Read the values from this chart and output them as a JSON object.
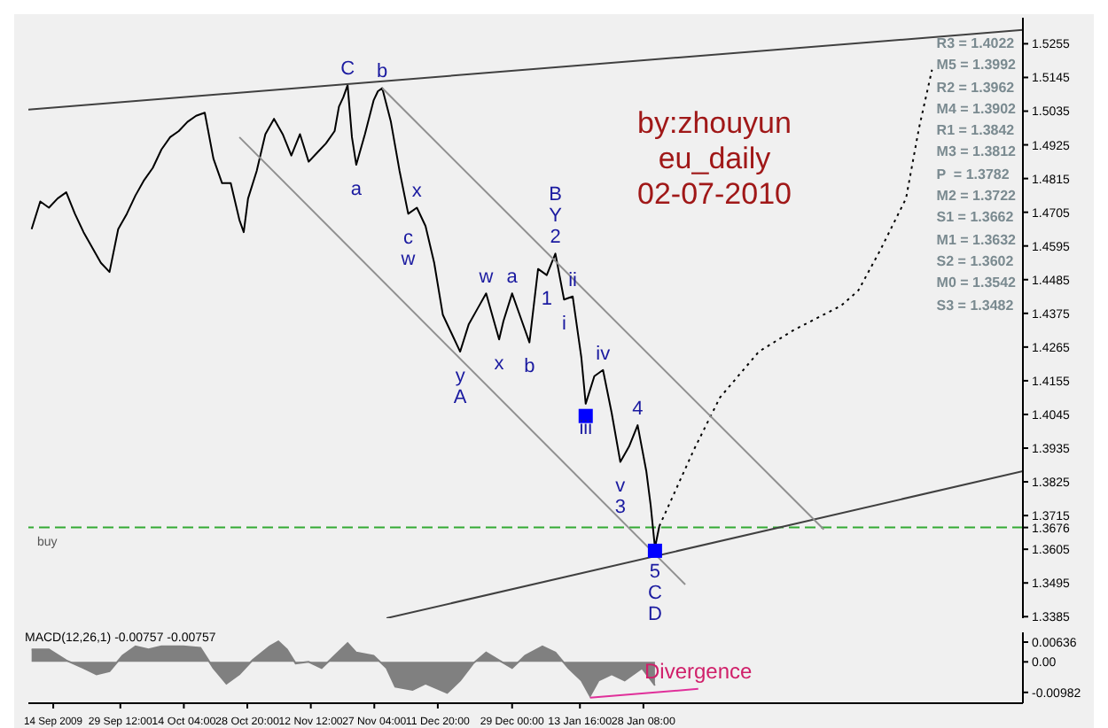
{
  "chart_data": [
    {
      "type": "line",
      "title": "by:zhouyun\neu_daily\n02-07-2010",
      "xlim": [
        "2009-09-08T06:00",
        "2010-04-26"
      ],
      "ylim": [
        1.338,
        1.534
      ],
      "yticks": [
        1.5255,
        1.5145,
        1.5035,
        1.4925,
        1.4815,
        1.4705,
        1.4595,
        1.4485,
        1.4375,
        1.4265,
        1.4155,
        1.4045,
        1.3935,
        1.3825,
        1.3715,
        {
          "value": 1.3676,
          "label": "1.3676"
        },
        1.3605,
        1.3495,
        1.3385
      ],
      "tick_labels": "y",
      "series": [
        {
          "color": "#000000",
          "x": [
            "2009-09-09",
            "2009-09-11",
            "2009-09-13",
            "2009-09-15",
            "2009-09-17",
            "2009-09-19",
            "2009-09-21",
            "2009-09-23",
            "2009-09-25",
            "2009-09-27",
            "2009-09-29",
            "2009-10-01",
            "2009-10-03",
            "2009-10-05",
            "2009-10-07",
            "2009-10-09",
            "2009-10-11",
            "2009-10-13",
            "2009-10-15",
            "2009-10-17",
            "2009-10-19",
            "2009-10-21",
            "2009-10-23",
            "2009-10-25",
            "2009-10-27",
            "2009-10-28",
            "2009-10-29",
            "2009-10-31",
            "2009-11-02",
            "2009-11-04",
            "2009-11-06",
            "2009-11-08",
            "2009-11-10",
            "2009-11-12",
            "2009-11-14",
            "2009-11-16",
            "2009-11-18",
            "2009-11-19",
            "2009-11-20",
            "2009-11-21",
            "2009-11-22",
            "2009-11-23",
            "2009-11-25",
            "2009-11-27",
            "2009-11-28",
            "2009-11-29",
            "2009-12-01",
            "2009-12-03",
            "2009-12-05",
            "2009-12-07",
            "2009-12-09",
            "2009-12-11",
            "2009-12-13",
            "2009-12-15",
            "2009-12-17",
            "2009-12-19",
            "2009-12-21",
            "2009-12-23",
            "2009-12-25",
            "2009-12-26",
            "2009-12-27",
            "2009-12-29",
            "2009-12-31",
            "2010-01-02",
            "2010-01-04",
            "2010-01-06",
            "2010-01-08",
            "2010-01-10",
            "2010-01-12",
            "2010-01-14",
            "2010-01-15",
            "2010-01-17",
            "2010-01-19",
            "2010-01-21",
            "2010-01-23",
            "2010-01-25",
            "2010-01-27",
            "2010-01-29",
            "2010-01-30",
            "2010-01-31",
            "2010-02-01"
          ],
          "values": [
            1.465,
            1.474,
            1.472,
            1.475,
            1.477,
            1.47,
            1.464,
            1.459,
            1.454,
            1.451,
            1.465,
            1.47,
            1.476,
            1.481,
            1.485,
            1.491,
            1.495,
            1.497,
            1.5,
            1.502,
            1.503,
            1.488,
            1.48,
            1.48,
            1.468,
            1.464,
            1.475,
            1.484,
            1.496,
            1.501,
            1.496,
            1.489,
            1.496,
            1.487,
            1.49,
            1.493,
            1.497,
            1.505,
            1.508,
            1.512,
            1.495,
            1.486,
            1.496,
            1.507,
            1.51,
            1.511,
            1.5,
            1.484,
            1.47,
            1.472,
            1.466,
            1.454,
            1.437,
            1.431,
            1.425,
            1.434,
            1.439,
            1.444,
            1.434,
            1.429,
            1.435,
            1.444,
            1.436,
            1.428,
            1.452,
            1.45,
            1.457,
            1.442,
            1.443,
            1.423,
            1.408,
            1.417,
            1.419,
            1.405,
            1.389,
            1.394,
            1.401,
            1.386,
            1.375,
            1.361,
            1.368
          ]
        },
        {
          "color": "#000000",
          "line_style": "dotted",
          "x": [
            "2010-02-01",
            "2010-02-09",
            "2010-02-15",
            "2010-02-24",
            "2010-03-04",
            "2010-03-15",
            "2010-03-19",
            "2010-03-24",
            "2010-03-30",
            "2010-04-02",
            "2010-04-05"
          ],
          "values": [
            1.368,
            1.393,
            1.41,
            1.425,
            1.432,
            1.44,
            1.445,
            1.458,
            1.475,
            1.498,
            1.517
          ]
        },
        {
          "color": "#404040",
          "x": [
            "2009-09-08T06:00",
            "2010-04-26"
          ],
          "values": [
            1.504,
            1.53
          ]
        },
        {
          "color": "#404040",
          "x": [
            "2009-11-30",
            "2010-04-26"
          ],
          "values": [
            1.338,
            1.386
          ]
        },
        {
          "color": "#909090",
          "x": [
            "2009-11-29",
            "2010-03-11"
          ],
          "values": [
            1.511,
            1.367
          ]
        },
        {
          "color": "#909090",
          "x": [
            "2009-10-27",
            "2010-02-07"
          ],
          "values": [
            1.495,
            1.349
          ]
        },
        {
          "type": "scatter",
          "marker": "square",
          "color": "#0000ff",
          "x": [
            "2010-01-15",
            "2010-01-31"
          ],
          "values": [
            1.404,
            1.36
          ]
        }
      ],
      "ref_lines": [
        {
          "axis": "y",
          "value": 1.3676,
          "label": "buy",
          "color": "#33aa33",
          "line_style": "dashed"
        }
      ],
      "annotations": [
        "R3 = 1.4022",
        "M5 = 1.3992",
        "R2 = 1.3962",
        "M4 = 1.3902",
        "R1 = 1.3842",
        "M3 = 1.3812",
        "P  = 1.3782",
        "M2 = 1.3722",
        "S1 = 1.3662",
        "M1 = 1.3632",
        "S2 = 1.3602",
        "M0 = 1.3542",
        "S3 = 1.3482",
        {
          "text": "C",
          "x": "2009-11-21",
          "y": 1.512
        },
        {
          "text": "b",
          "x": "2009-11-29",
          "y": 1.511
        },
        {
          "text": "a",
          "x": "2009-11-23",
          "y": 1.486
        },
        {
          "text": "x",
          "x": "2009-12-07",
          "y": 1.472
        },
        {
          "text": "c",
          "x": "2009-12-05",
          "y": 1.47
        },
        {
          "text": "w",
          "x": "2009-12-05",
          "y": 1.47
        },
        {
          "text": "y",
          "x": "2009-12-17",
          "y": 1.425
        },
        {
          "text": "A",
          "x": "2009-12-17",
          "y": 1.425
        },
        {
          "text": "w",
          "x": "2009-12-23",
          "y": 1.444
        },
        {
          "text": "a",
          "x": "2009-12-29",
          "y": 1.444
        },
        {
          "text": "x",
          "x": "2009-12-26",
          "y": 1.429
        },
        {
          "text": "b",
          "x": "2010-01-02",
          "y": 1.428
        },
        {
          "text": "2",
          "x": "2010-01-08",
          "y": 1.457
        },
        {
          "text": "Y",
          "x": "2010-01-08",
          "y": 1.457
        },
        {
          "text": "B",
          "x": "2010-01-08",
          "y": 1.457
        },
        {
          "text": "1",
          "x": "2010-01-06",
          "y": 1.45
        },
        {
          "text": "ii",
          "x": "2010-01-12",
          "y": 1.443
        },
        {
          "text": "i",
          "x": "2010-01-10",
          "y": 1.442
        },
        {
          "text": "iii",
          "x": "2010-01-15",
          "y": 1.408
        },
        {
          "text": "iv",
          "x": "2010-01-19",
          "y": 1.419
        },
        {
          "text": "v",
          "x": "2010-01-23",
          "y": 1.389
        },
        {
          "text": "3",
          "x": "2010-01-23",
          "y": 1.389
        },
        {
          "text": "4",
          "x": "2010-01-27",
          "y": 1.401
        },
        {
          "text": "5",
          "x": "2010-01-31",
          "y": 1.361
        },
        {
          "text": "C",
          "x": "2010-01-31",
          "y": 1.361
        },
        {
          "text": "D",
          "x": "2010-01-31",
          "y": 1.361
        }
      ]
    },
    {
      "type": "area",
      "xlim": [
        "2009-09-08T06:00",
        "2010-04-26"
      ],
      "ylim": [
        -0.0133,
        0.0095
      ],
      "yticks": [
        0.00636,
        {
          "value": 0,
          "label": "0.00"
        },
        -0.00982
      ],
      "xticks": [
        {
          "value": "2009-09-14",
          "label": "14 Sep 2009"
        },
        {
          "value": "2009-09-29T12:00",
          "label": "29 Sep 12:00"
        },
        {
          "value": "2009-10-14T04:00",
          "label": "14 Oct 04:00"
        },
        {
          "value": "2009-10-28T20:00",
          "label": "28 Oct 20:00"
        },
        {
          "value": "2009-11-12T12:00",
          "label": "12 Nov 12:00"
        },
        {
          "value": "2009-11-27T04:00",
          "label": "27 Nov 04:00"
        },
        {
          "value": "2009-12-11T20:00",
          "label": "11 Dec 20:00"
        },
        {
          "value": "2009-12-29T00:00",
          "label": "29 Dec 00:00"
        },
        {
          "value": "2010-01-13T16:00",
          "label": "13 Jan 16:00"
        },
        {
          "value": "2010-01-28T08:00",
          "label": "28 Jan 08:00"
        }
      ],
      "series": [
        {
          "color": "#808080",
          "x": [
            "2009-09-09",
            "2009-09-13",
            "2009-09-17",
            "2009-09-21",
            "2009-09-24",
            "2009-09-27",
            "2009-09-30",
            "2009-10-03",
            "2009-10-06",
            "2009-10-09",
            "2009-10-14",
            "2009-10-18",
            "2009-10-21",
            "2009-10-24",
            "2009-10-27",
            "2009-10-30",
            "2009-11-03",
            "2009-11-05",
            "2009-11-07",
            "2009-11-09",
            "2009-11-12",
            "2009-11-15",
            "2009-11-18",
            "2009-11-21",
            "2009-11-23",
            "2009-11-27",
            "2009-11-30",
            "2009-12-02",
            "2009-12-06",
            "2009-12-09",
            "2009-12-14",
            "2009-12-17",
            "2009-12-20",
            "2009-12-23",
            "2009-12-26",
            "2009-12-29",
            "2010-01-01",
            "2010-01-05",
            "2010-01-08",
            "2010-01-11",
            "2010-01-14",
            "2010-01-16",
            "2010-01-18",
            "2010-01-21",
            "2010-01-24",
            "2010-01-28",
            "2010-01-31"
          ],
          "values": [
            0.004,
            0.004,
            0.0005,
            -0.002,
            -0.004,
            -0.003,
            0.002,
            0.005,
            0.004,
            0.005,
            0.005,
            0.0045,
            -0.002,
            -0.007,
            -0.004,
            0.0005,
            0.005,
            0.0066,
            0.004,
            -0.0005,
            0,
            -0.002,
            0.002,
            0.006,
            0.003,
            0.002,
            -0.002,
            -0.008,
            -0.009,
            -0.007,
            -0.01,
            -0.006,
            -0.0005,
            0.003,
            0.0005,
            -0.002,
            0.002,
            0.005,
            0.003,
            -0.002,
            -0.006,
            -0.011,
            -0.006,
            -0.004,
            -0.006,
            -0.002,
            -0.0076
          ]
        },
        {
          "type": "line",
          "color": "#e0309a",
          "x": [
            "2010-01-16",
            "2010-02-10"
          ],
          "values": [
            -0.0115,
            -0.0087
          ]
        }
      ],
      "annotations": [
        "MACD(12,26,1) -0.00757 -0.00757",
        {
          "text": "Divergence",
          "x": "2010-02-10",
          "y": -0.0087
        }
      ]
    }
  ]
}
